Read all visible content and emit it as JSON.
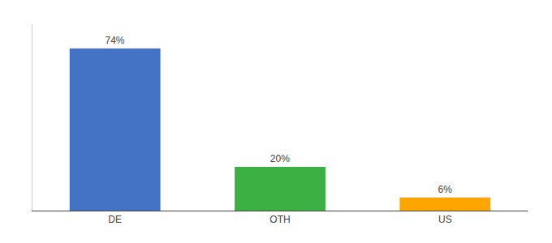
{
  "chart_data": {
    "type": "bar",
    "categories": [
      "DE",
      "OTH",
      "US"
    ],
    "values": [
      74,
      20,
      6
    ],
    "value_labels": [
      "74%",
      "20%",
      "6%"
    ],
    "data_labels": true,
    "colors": [
      "#4472C4",
      "#3CB043",
      "#FFA500"
    ],
    "ylim": [
      0,
      85
    ],
    "grid": false,
    "tick_labels": "x"
  }
}
